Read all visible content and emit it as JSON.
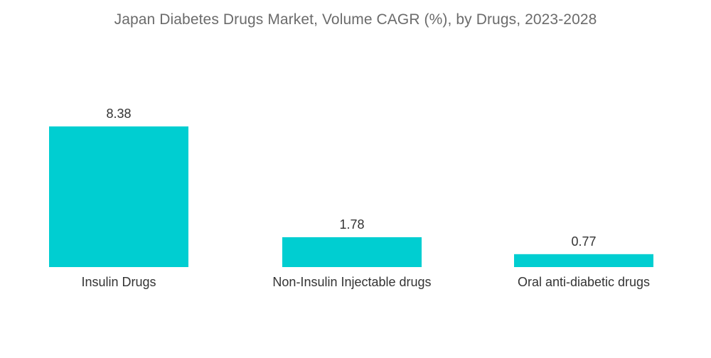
{
  "chart_data": {
    "type": "bar",
    "title": "Japan Diabetes Drugs Market, Volume CAGR (%), by Drugs, 2023-2028",
    "categories": [
      "Insulin Drugs",
      "Non-Insulin Injectable drugs",
      "Oral anti-diabetic drugs"
    ],
    "values": [
      8.38,
      1.78,
      0.77
    ],
    "value_labels": [
      "8.38",
      "1.78",
      "0.77"
    ],
    "xlabel": "",
    "ylabel": "",
    "ylim": [
      0,
      8.38
    ],
    "grid": false,
    "legend": "none",
    "bar_color": "#00CED1"
  }
}
